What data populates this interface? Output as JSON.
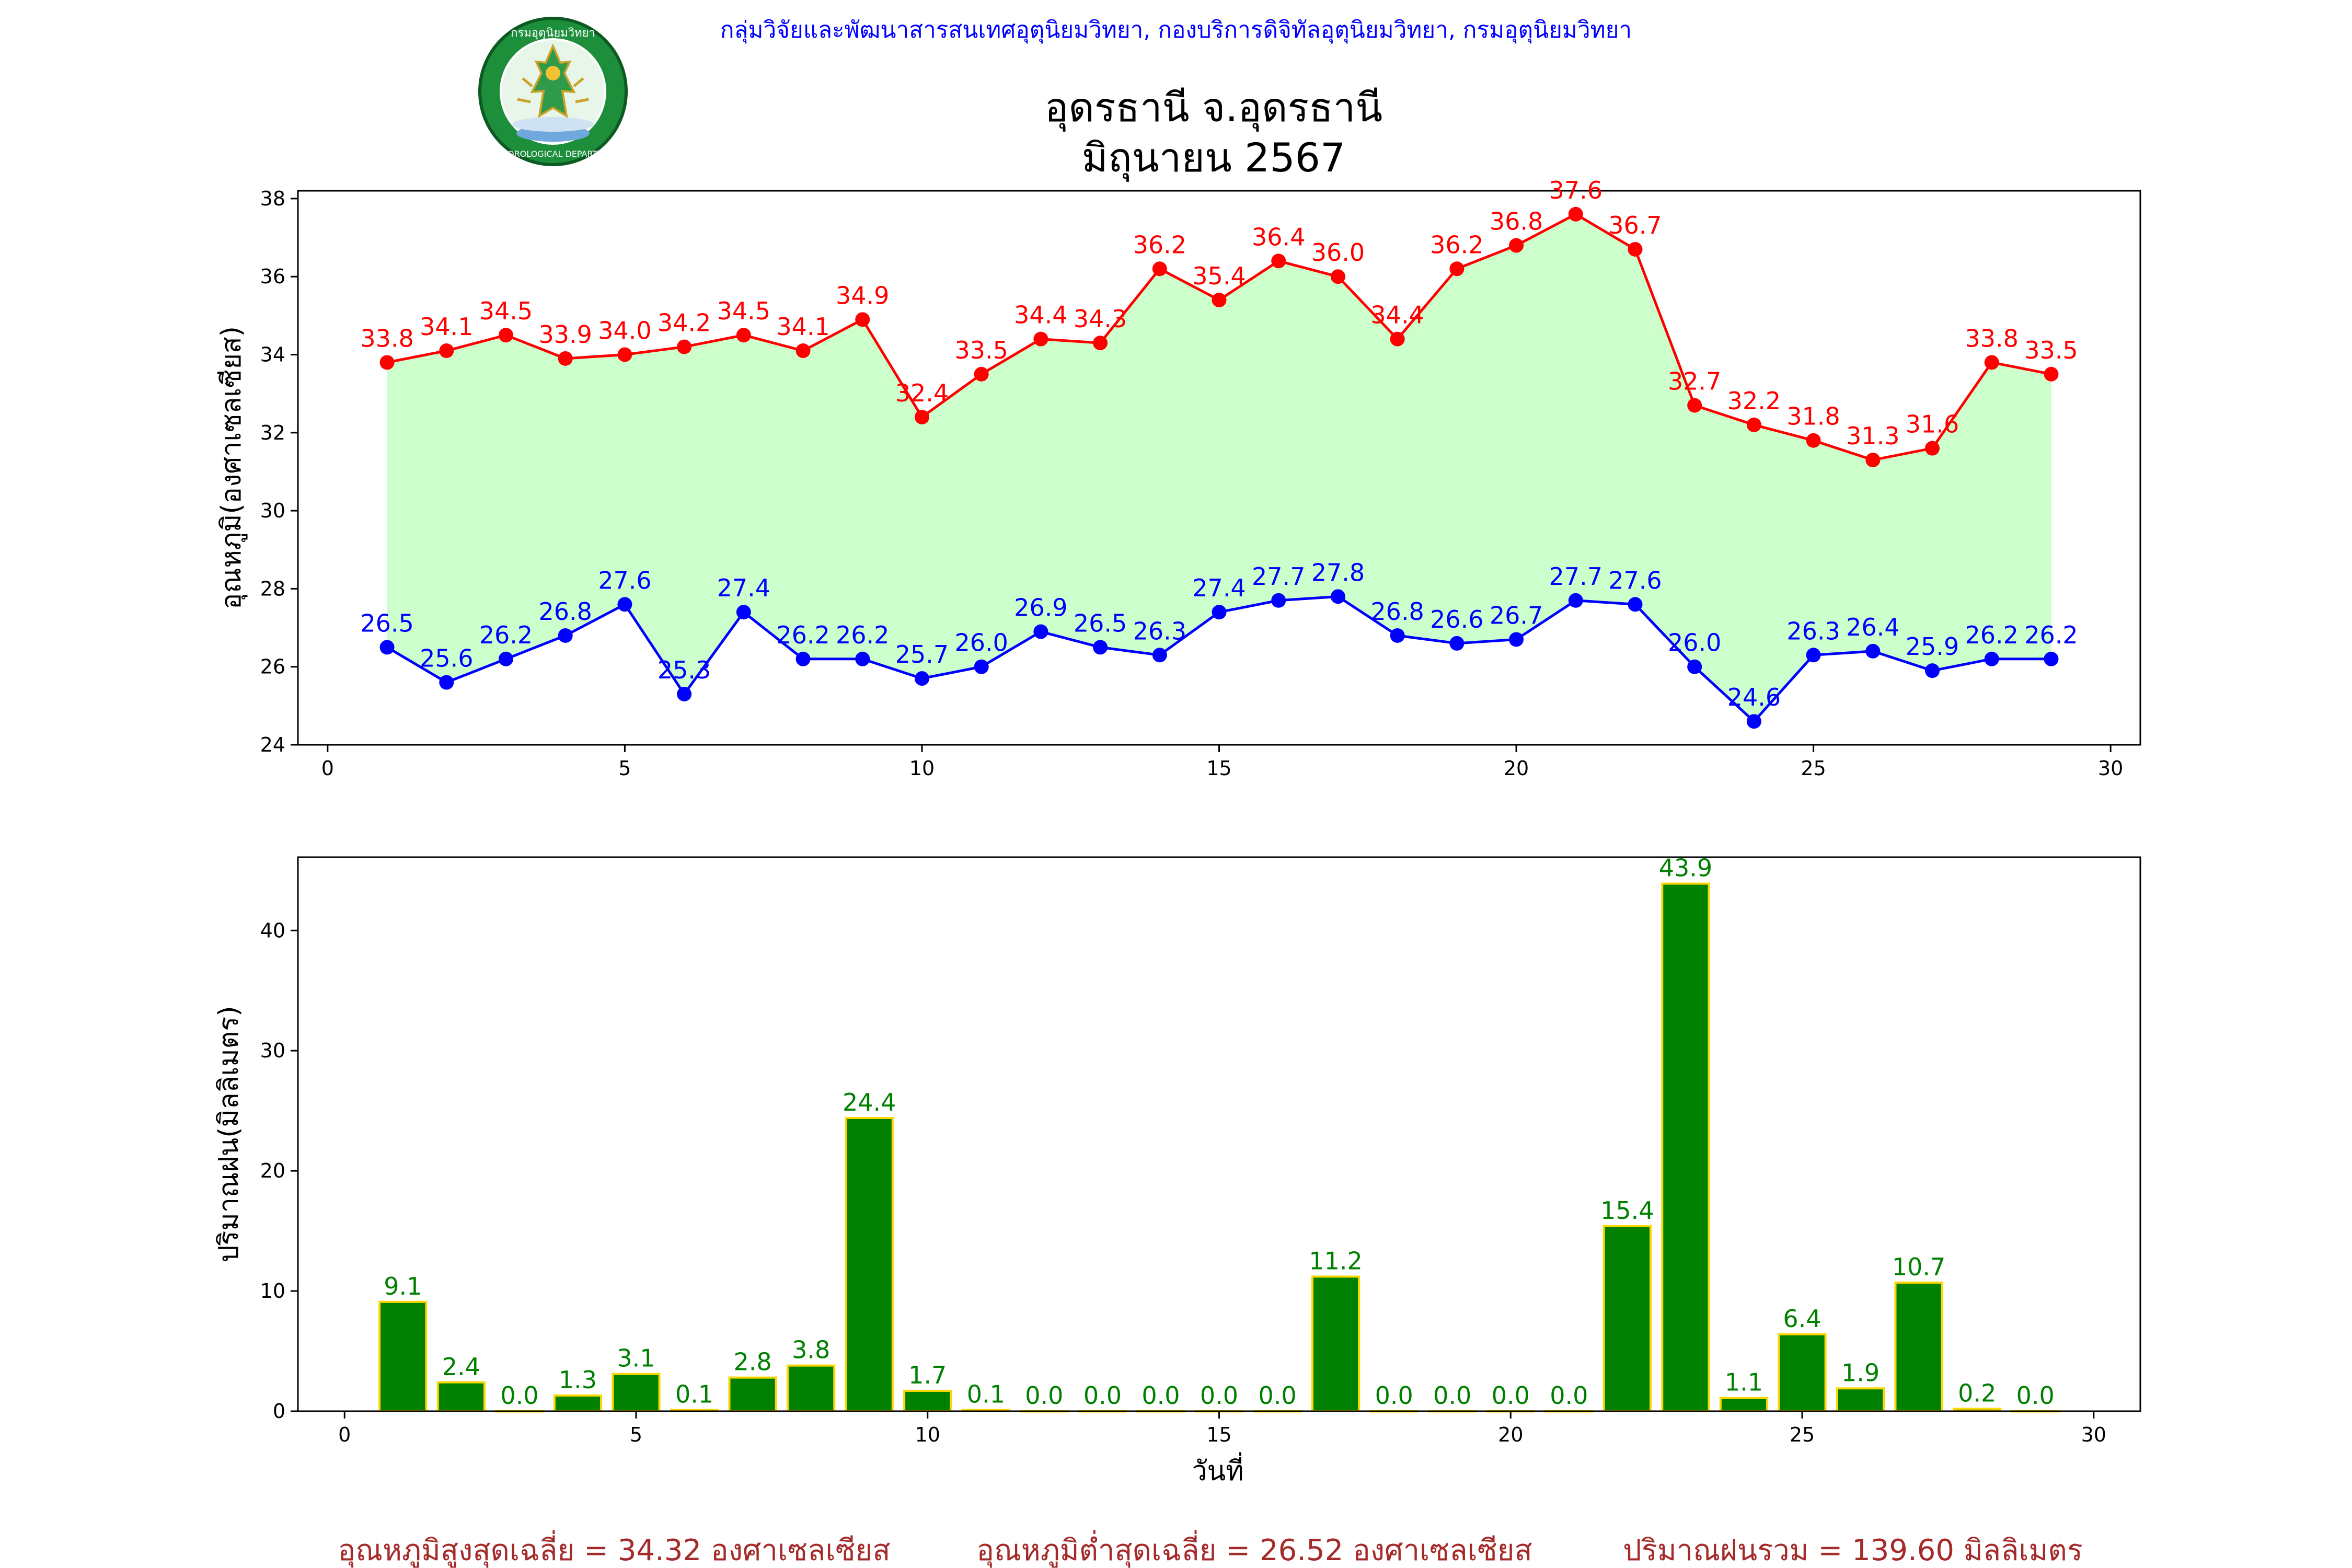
{
  "header": {
    "org_line": "กลุ่มวิจัยและพัฒนาสารสนเทศอุตุนิยมวิทยา, กองบริการดิจิทัลอุตุนิยมวิทยา, กรมอุตุนิยมวิทยา",
    "title_line1": "อุดรธานี จ.อุดรธานี",
    "title_line2": "มิถุนายน 2567",
    "logo_text_top": "กรมอุตุนิยมวิทยา",
    "logo_text_bottom": "METEOROLOGICAL DEPARTMENT"
  },
  "colors": {
    "max_line": "#ff0000",
    "min_line": "#0000ff",
    "fill": "#ccffcc",
    "rain_bar": "#008000",
    "rain_edge": "#ffd700",
    "rain_label": "#008000",
    "summary_text": "#a52a2a",
    "header_text": "#0000ff"
  },
  "chart_data": [
    {
      "type": "line",
      "x": [
        1,
        2,
        3,
        4,
        5,
        6,
        7,
        8,
        9,
        10,
        11,
        12,
        13,
        14,
        15,
        16,
        17,
        18,
        19,
        20,
        21,
        22,
        23,
        24,
        25,
        26,
        27,
        28,
        29
      ],
      "series": [
        {
          "values": [
            33.8,
            34.1,
            34.5,
            33.9,
            34.0,
            34.2,
            34.5,
            34.1,
            34.9,
            32.4,
            33.5,
            34.4,
            34.3,
            36.2,
            35.4,
            36.4,
            36.0,
            34.4,
            36.2,
            36.8,
            37.6,
            36.7,
            32.7,
            32.2,
            31.8,
            31.3,
            31.6,
            33.8,
            33.5
          ]
        },
        {
          "values": [
            26.5,
            25.6,
            26.2,
            26.8,
            27.6,
            25.3,
            27.4,
            26.2,
            26.2,
            25.7,
            26.0,
            26.9,
            26.5,
            26.3,
            27.4,
            27.7,
            27.8,
            26.8,
            26.6,
            26.7,
            27.7,
            27.6,
            26.0,
            24.6,
            26.3,
            26.4,
            25.9,
            26.2,
            26.2
          ]
        }
      ],
      "ylabel": "อุณหภูมิ(องศาเซลเซียส)",
      "xlim": [
        -0.5,
        30.5
      ],
      "ylim": [
        24,
        38.2
      ],
      "xticks": [
        0,
        5,
        10,
        15,
        20,
        25,
        30
      ],
      "yticks": [
        24,
        26,
        28,
        30,
        32,
        34,
        36,
        38
      ],
      "grid": false,
      "legend": "none"
    },
    {
      "type": "bar",
      "x": [
        1,
        2,
        3,
        4,
        5,
        6,
        7,
        8,
        9,
        10,
        11,
        12,
        13,
        14,
        15,
        16,
        17,
        18,
        19,
        20,
        21,
        22,
        23,
        24,
        25,
        26,
        27,
        28,
        29
      ],
      "values": [
        9.1,
        2.4,
        0.0,
        1.3,
        3.1,
        0.1,
        2.8,
        3.8,
        24.4,
        1.7,
        0.1,
        0.0,
        0.0,
        0.0,
        0.0,
        0.0,
        11.2,
        0.0,
        0.0,
        0.0,
        0.0,
        15.4,
        43.9,
        1.1,
        6.4,
        1.9,
        10.7,
        0.2,
        0.0
      ],
      "xlabel": "วันที่",
      "ylabel": "ปริมาณฝน(มิลลิเมตร)",
      "xlim": [
        -0.8,
        30.8
      ],
      "ylim": [
        0,
        46.1
      ],
      "xticks": [
        0,
        5,
        10,
        15,
        20,
        25,
        30
      ],
      "yticks": [
        0,
        10,
        20,
        30,
        40
      ],
      "grid": false,
      "legend": "none"
    }
  ],
  "summary": {
    "avg_max": "อุณหภูมิสูงสุดเฉลี่ย = 34.32 องศาเซลเซียส",
    "avg_min": "อุณหภูมิต่ำสุดเฉลี่ย = 26.52 องศาเซลเซียส",
    "total_rain": "ปริมาณฝนรวม = 139.60 มิลลิเมตร"
  }
}
